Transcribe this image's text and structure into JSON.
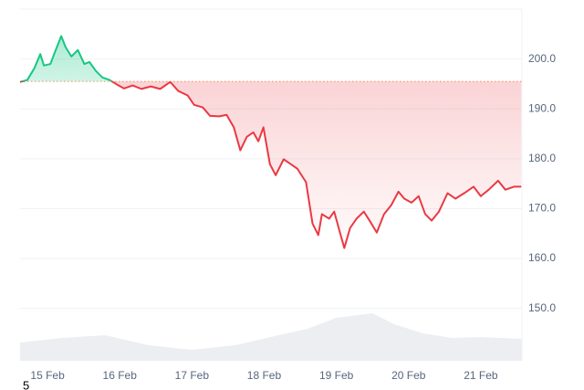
{
  "chart_data": {
    "type": "line",
    "x": [
      14.62,
      14.72,
      14.82,
      14.9,
      14.95,
      15.04,
      15.1,
      15.19,
      15.25,
      15.33,
      15.42,
      15.51,
      15.58,
      15.67,
      15.76,
      15.86,
      15.96,
      16.06,
      16.18,
      16.3,
      16.43,
      16.56,
      16.7,
      16.81,
      16.94,
      17.03,
      17.15,
      17.25,
      17.38,
      17.48,
      17.58,
      17.67,
      17.76,
      17.85,
      17.92,
      17.99,
      18.08,
      18.16,
      18.27,
      18.37,
      18.46,
      18.58,
      18.67,
      18.75,
      18.8,
      18.9,
      18.97,
      19.05,
      19.11,
      19.19,
      19.28,
      19.38,
      19.46,
      19.56,
      19.66,
      19.76,
      19.86,
      19.94,
      20.04,
      20.14,
      20.23,
      20.32,
      20.42,
      20.54,
      20.65,
      20.77,
      20.9,
      21,
      21.11,
      21.24,
      21.34,
      21.46,
      21.56
    ],
    "values": [
      195.4,
      195.8,
      198.2,
      201,
      198.7,
      199,
      201.3,
      204.6,
      202.4,
      200.5,
      201.8,
      199,
      199.4,
      197.6,
      196.3,
      195.8,
      194.9,
      194.1,
      194.7,
      194,
      194.5,
      194,
      195.4,
      193.6,
      192.7,
      190.8,
      190.3,
      188.6,
      188.5,
      188.8,
      186.3,
      181.7,
      184.4,
      185.3,
      183.5,
      186.3,
      178.9,
      176.7,
      179.9,
      178.9,
      178,
      175.3,
      167,
      164.7,
      168.9,
      168,
      169.4,
      165.2,
      162.1,
      166.1,
      168,
      169.4,
      167.6,
      165.2,
      168.9,
      170.7,
      173.4,
      172,
      171.2,
      172.5,
      168.9,
      167.6,
      169.4,
      173.1,
      172,
      173.1,
      174.4,
      172.5,
      173.8,
      175.6,
      173.8,
      174.4,
      174.4
    ],
    "baseline": 195.5,
    "up_color": "#16c784",
    "down_color": "#ea3943",
    "baseline_color": "#f3a36b",
    "xlim": [
      14.62,
      21.57
    ],
    "xticks": [
      {
        "value": 15,
        "label": "15 Feb"
      },
      {
        "value": 16,
        "label": "16 Feb"
      },
      {
        "value": 17,
        "label": "17 Feb"
      },
      {
        "value": 18,
        "label": "18 Feb"
      },
      {
        "value": 19,
        "label": "19 Feb"
      },
      {
        "value": 20,
        "label": "20 Feb"
      },
      {
        "value": 21,
        "label": "21 Feb"
      }
    ],
    "ylim": [
      139.5,
      210
    ],
    "yticks": [
      {
        "value": 150,
        "label": "150.0"
      },
      {
        "value": 160,
        "label": "160.0"
      },
      {
        "value": 170,
        "label": "170.0"
      },
      {
        "value": 180,
        "label": "180.0"
      },
      {
        "value": 190,
        "label": "190.0"
      },
      {
        "value": 200,
        "label": "200.0"
      }
    ],
    "grid": true,
    "volume": {
      "x": [
        14.62,
        15.2,
        15.8,
        16.4,
        17,
        17.6,
        18.2,
        18.6,
        19,
        19.5,
        19.8,
        20.2,
        20.6,
        21,
        21.57
      ],
      "values": [
        20,
        25,
        28,
        17,
        12,
        17,
        28,
        35,
        47,
        52,
        40,
        30,
        25,
        26,
        24
      ],
      "ylim": [
        0,
        60
      ],
      "color": "#eceef1"
    },
    "footnote": "5"
  }
}
